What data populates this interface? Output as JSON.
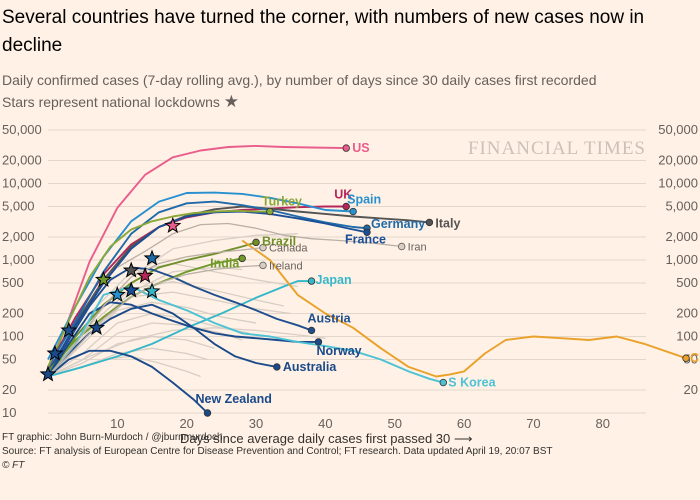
{
  "header": {
    "title": "Several countries have turned the corner, with numbers of new cases now in decline",
    "subtitle_line1": "Daily confirmed cases (7-day rolling avg.), by number of days since 30 daily cases first recorded",
    "subtitle_line2": "Stars represent national lockdowns",
    "star_glyph": "★"
  },
  "watermark": "FINANCIAL TIMES",
  "footer": {
    "credit": "FT graphic: John Burn-Murdoch / @jburnmurdoch",
    "source": "Source: FT analysis of European Centre for Disease Prevention and Control; FT research. Data updated April 19, 20:07 BST",
    "copyright": "© FT"
  },
  "chart_data": {
    "type": "line",
    "title": "Several countries have turned the corner, with numbers of new cases now in decline",
    "xlabel": "Days since average daily cases first passed 30 ⟶",
    "ylabel": "",
    "y_scale": "log",
    "xlim": [
      0,
      92
    ],
    "ylim": [
      10,
      50000
    ],
    "x_ticks": [
      10,
      20,
      30,
      40,
      50,
      60,
      70,
      80
    ],
    "y_ticks": [
      10,
      20,
      50,
      100,
      200,
      500,
      1000,
      2000,
      5000,
      10000,
      20000,
      50000
    ],
    "y_tick_labels": [
      "10",
      "20",
      "50",
      "100",
      "200",
      "500",
      "1,000",
      "2,000",
      "5,000",
      "10,000",
      "20,000",
      "50,000"
    ],
    "y_tick_labels_right": [
      "",
      "20",
      "50",
      "100",
      "200",
      "500",
      "1,000",
      "2,000",
      "5,000",
      "10,000",
      "20,000",
      "50,000"
    ],
    "grid": "horizontal",
    "colors": {
      "US": "#e95d8c",
      "UK": "#b5265a",
      "Spain": "#2890d0",
      "Italy": "#545454",
      "Germany": "#1f6aa8",
      "France": "#1a4f97",
      "Turkey": "#8aa83a",
      "Brazil": "#6f8f2b",
      "India": "#6f9a2a",
      "Japan": "#35b7c9",
      "Austria": "#1f4f8f",
      "Norway": "#1a4a8a",
      "Australia": "#1a4a8a",
      "New Zealand": "#1a4a8a",
      "S Korea": "#4cc2d4",
      "China": "#eaa12a",
      "Canada": "#bbb0a6",
      "Ireland": "#bbb0a6",
      "Iran": "#bbb0a6",
      "background": "#d8cec5"
    },
    "series": [
      {
        "name": "US",
        "x": [
          0,
          3,
          6,
          10,
          14,
          18,
          22,
          26,
          30,
          34,
          38,
          43
        ],
        "y": [
          35,
          170,
          950,
          4800,
          13000,
          22000,
          27000,
          30000,
          31000,
          30000,
          29500,
          29000
        ]
      },
      {
        "name": "UK",
        "x": [
          0,
          4,
          8,
          12,
          16,
          20,
          24,
          28,
          32,
          36,
          40,
          43
        ],
        "y": [
          40,
          180,
          650,
          1600,
          2700,
          3600,
          4200,
          4500,
          4700,
          4900,
          5000,
          5000
        ]
      },
      {
        "name": "Spain",
        "x": [
          0,
          4,
          8,
          12,
          16,
          20,
          24,
          28,
          32,
          36,
          40,
          44
        ],
        "y": [
          50,
          250,
          1100,
          3200,
          5800,
          7500,
          7600,
          7300,
          6500,
          5500,
          4500,
          4300
        ]
      },
      {
        "name": "Italy",
        "x": [
          0,
          4,
          8,
          12,
          16,
          20,
          24,
          28,
          32,
          36,
          40,
          44,
          48,
          52,
          55
        ],
        "y": [
          30,
          150,
          550,
          1500,
          2700,
          3800,
          4600,
          5000,
          4700,
          4300,
          4000,
          3700,
          3500,
          3300,
          3100
        ]
      },
      {
        "name": "Germany",
        "x": [
          0,
          4,
          8,
          12,
          16,
          20,
          24,
          28,
          32,
          36,
          40,
          44,
          46
        ],
        "y": [
          40,
          160,
          700,
          2200,
          4200,
          5500,
          5800,
          5200,
          4500,
          3700,
          3100,
          2700,
          2600
        ]
      },
      {
        "name": "France",
        "x": [
          0,
          4,
          8,
          12,
          16,
          20,
          24,
          28,
          32,
          36,
          40,
          44,
          46
        ],
        "y": [
          35,
          140,
          500,
          1400,
          2700,
          3700,
          4200,
          4300,
          4000,
          3500,
          3000,
          2500,
          2300
        ]
      },
      {
        "name": "Turkey",
        "x": [
          0,
          3,
          6,
          9,
          12,
          15,
          18,
          21,
          24,
          27,
          30,
          32
        ],
        "y": [
          40,
          160,
          600,
          1500,
          2500,
          3200,
          3700,
          4100,
          4300,
          4400,
          4300,
          4300
        ]
      },
      {
        "name": "Brazil",
        "x": [
          0,
          4,
          8,
          12,
          16,
          20,
          24,
          28,
          30
        ],
        "y": [
          30,
          100,
          260,
          500,
          800,
          1000,
          1200,
          1500,
          1700
        ]
      },
      {
        "name": "India",
        "x": [
          0,
          4,
          8,
          12,
          16,
          20,
          24,
          28
        ],
        "y": [
          35,
          90,
          180,
          330,
          500,
          700,
          900,
          1050
        ]
      },
      {
        "name": "Japan",
        "x": [
          0,
          5,
          10,
          15,
          20,
          25,
          30,
          34,
          36,
          38
        ],
        "y": [
          30,
          40,
          55,
          80,
          130,
          200,
          320,
          450,
          530,
          530
        ]
      },
      {
        "name": "Austria",
        "x": [
          0,
          3,
          6,
          9,
          12,
          15,
          18,
          21,
          24,
          27,
          30,
          33,
          36,
          38
        ],
        "y": [
          30,
          90,
          250,
          550,
          800,
          750,
          600,
          450,
          350,
          280,
          220,
          170,
          140,
          120
        ]
      },
      {
        "name": "Norway",
        "x": [
          0,
          3,
          6,
          9,
          12,
          15,
          18,
          21,
          24,
          27,
          30,
          33,
          36,
          39
        ],
        "y": [
          30,
          80,
          200,
          280,
          260,
          200,
          160,
          130,
          110,
          100,
          95,
          90,
          85,
          85
        ]
      },
      {
        "name": "Australia",
        "x": [
          0,
          3,
          6,
          9,
          12,
          15,
          18,
          21,
          24,
          27,
          30,
          33
        ],
        "y": [
          30,
          60,
          110,
          170,
          230,
          260,
          200,
          130,
          80,
          55,
          45,
          40
        ]
      },
      {
        "name": "New Zealand",
        "x": [
          0,
          3,
          6,
          9,
          12,
          15,
          18,
          21,
          23
        ],
        "y": [
          30,
          50,
          65,
          65,
          55,
          40,
          25,
          15,
          10
        ]
      },
      {
        "name": "S Korea",
        "x": [
          0,
          4,
          8,
          12,
          16,
          20,
          24,
          28,
          32,
          36,
          40,
          44,
          48,
          52,
          55,
          57
        ],
        "y": [
          30,
          80,
          350,
          450,
          300,
          220,
          150,
          110,
          100,
          85,
          75,
          65,
          50,
          35,
          28,
          25
        ]
      },
      {
        "name": "China",
        "x": [
          28,
          32,
          36,
          40,
          44,
          48,
          52,
          56,
          58,
          60,
          63,
          66,
          70,
          74,
          78,
          82,
          86,
          92
        ],
        "y": [
          1800,
          1000,
          350,
          200,
          130,
          70,
          40,
          30,
          32,
          35,
          60,
          90,
          100,
          95,
          90,
          100,
          80,
          52
        ]
      },
      {
        "name": "Canada",
        "x": [
          0,
          4,
          8,
          12,
          16,
          20,
          24,
          28,
          31
        ],
        "y": [
          30,
          80,
          250,
          600,
          900,
          1100,
          1250,
          1350,
          1450
        ]
      },
      {
        "name": "Ireland",
        "x": [
          0,
          4,
          8,
          12,
          16,
          20,
          24,
          28,
          31
        ],
        "y": [
          30,
          70,
          170,
          330,
          500,
          650,
          750,
          820,
          850
        ]
      },
      {
        "name": "Iran",
        "x": [
          10,
          14,
          18,
          22,
          26,
          30,
          34,
          38,
          42,
          46,
          51
        ],
        "y": [
          800,
          1300,
          2200,
          2900,
          3000,
          2600,
          2100,
          1900,
          1800,
          1700,
          1500
        ]
      }
    ],
    "background_series": [
      {
        "x": [
          0,
          6,
          12,
          18,
          24,
          30,
          36
        ],
        "y": [
          30,
          200,
          700,
          900,
          700,
          550,
          450
        ]
      },
      {
        "x": [
          0,
          6,
          12,
          18,
          24,
          30,
          34
        ],
        "y": [
          30,
          140,
          420,
          520,
          400,
          300,
          250
        ]
      },
      {
        "x": [
          0,
          6,
          12,
          18,
          24,
          30,
          35
        ],
        "y": [
          30,
          110,
          330,
          380,
          300,
          230,
          200
        ]
      },
      {
        "x": [
          0,
          5,
          10,
          15,
          20,
          25,
          30
        ],
        "y": [
          30,
          80,
          220,
          280,
          240,
          180,
          150
        ]
      },
      {
        "x": [
          0,
          5,
          10,
          15,
          20,
          25,
          29
        ],
        "y": [
          30,
          60,
          150,
          200,
          170,
          130,
          110
        ]
      },
      {
        "x": [
          0,
          5,
          10,
          15,
          20,
          25,
          28
        ],
        "y": [
          30,
          50,
          110,
          150,
          140,
          110,
          90
        ]
      },
      {
        "x": [
          0,
          5,
          10,
          15,
          20,
          24
        ],
        "y": [
          30,
          45,
          80,
          100,
          90,
          70
        ]
      },
      {
        "x": [
          0,
          5,
          10,
          15,
          20,
          23
        ],
        "y": [
          30,
          40,
          60,
          70,
          60,
          50
        ]
      },
      {
        "x": [
          0,
          4,
          8,
          12,
          16,
          20,
          22
        ],
        "y": [
          30,
          38,
          50,
          55,
          45,
          35,
          30
        ]
      },
      {
        "x": [
          0,
          6,
          12,
          18,
          24,
          30,
          36,
          40
        ],
        "y": [
          30,
          55,
          90,
          120,
          130,
          120,
          105,
          95
        ]
      },
      {
        "x": [
          0,
          6,
          12,
          18,
          24,
          30,
          36
        ],
        "y": [
          30,
          150,
          600,
          1400,
          1800,
          2100,
          2200
        ]
      },
      {
        "x": [
          0,
          6,
          12,
          18,
          24,
          28
        ],
        "y": [
          30,
          120,
          380,
          700,
          800,
          750
        ]
      }
    ],
    "lockdowns": [
      {
        "series": "New Zealand",
        "x": 0,
        "y": 32
      },
      {
        "series": "Norway",
        "x": 1,
        "y": 60
      },
      {
        "series": "Austria",
        "x": 3,
        "y": 120
      },
      {
        "series": "Australia",
        "x": 7,
        "y": 130
      },
      {
        "series": "India",
        "x": 8,
        "y": 550
      },
      {
        "series": "Spain",
        "x": 10,
        "y": 350
      },
      {
        "series": "Italy",
        "x": 12,
        "y": 730
      },
      {
        "series": "France",
        "x": 12,
        "y": 400
      },
      {
        "series": "UK",
        "x": 14,
        "y": 620
      },
      {
        "series": "Germany",
        "x": 15,
        "y": 1050
      },
      {
        "series": "Japan",
        "x": 15,
        "y": 390
      },
      {
        "series": "US",
        "x": 18,
        "y": 2800
      }
    ],
    "end_labels": [
      {
        "series": "US",
        "text": "US",
        "x": 43,
        "y": 29000
      },
      {
        "series": "UK",
        "text": "UK",
        "x": 43,
        "y": 5000
      },
      {
        "series": "Spain",
        "text": "Spain",
        "x": 44,
        "y": 4300
      },
      {
        "series": "Italy",
        "text": "Italy",
        "x": 55,
        "y": 3100
      },
      {
        "series": "Germany",
        "text": "Germany",
        "x": 46,
        "y": 2600
      },
      {
        "series": "France",
        "text": "France",
        "x": 46,
        "y": 2300
      },
      {
        "series": "Turkey",
        "text": "Turkey",
        "x": 32,
        "y": 4300
      },
      {
        "series": "Brazil",
        "text": "Brazil",
        "x": 30,
        "y": 1700
      },
      {
        "series": "India",
        "text": "India",
        "x": 28,
        "y": 1050
      },
      {
        "series": "Japan",
        "text": "Japan",
        "x": 38,
        "y": 530
      },
      {
        "series": "Austria",
        "text": "Austria",
        "x": 38,
        "y": 120
      },
      {
        "series": "Norway",
        "text": "Norway",
        "x": 39,
        "y": 85
      },
      {
        "series": "Australia",
        "text": "Australia",
        "x": 33,
        "y": 40
      },
      {
        "series": "New Zealand",
        "text": "New Zealand",
        "x": 23,
        "y": 10
      },
      {
        "series": "S Korea",
        "text": "S Korea",
        "x": 57,
        "y": 25
      },
      {
        "series": "China",
        "text": "Ch",
        "x": 92,
        "y": 52
      },
      {
        "series": "Canada",
        "text": "Canada",
        "x": 31,
        "y": 1450
      },
      {
        "series": "Ireland",
        "text": "Ireland",
        "x": 31,
        "y": 850
      },
      {
        "series": "Iran",
        "text": "Iran",
        "x": 51,
        "y": 1500
      }
    ]
  }
}
